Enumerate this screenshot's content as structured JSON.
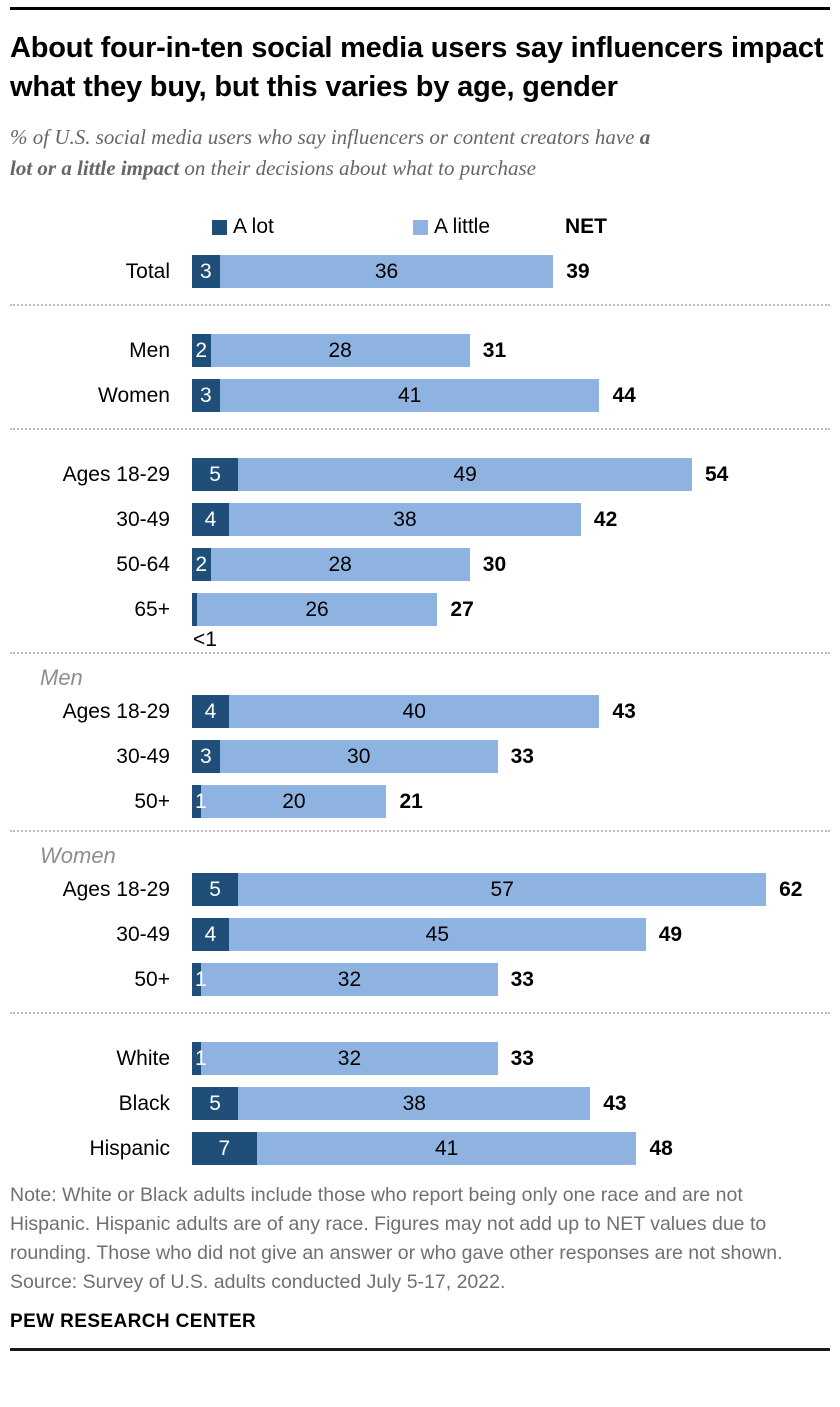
{
  "page": {
    "title": "About four-in-ten social media users say influencers impact what they buy, but this varies by age, gender",
    "subtitle": {
      "line1_regular": "% of U.S. social media users who say influencers or content creators have ",
      "line1_bold": "a",
      "line2_bold": "lot or a little impact",
      "line2_regular": " on their decisions about what to purchase"
    },
    "note": "Note: White or Black adults include those who report being only one race and are not Hispanic. Hispanic adults are of any race. Figures may not add up to NET values due to rounding. Those who did not give an answer or who gave other responses are not shown.",
    "source": "Source: Survey of U.S. adults conducted July 5-17, 2022.",
    "brand": "PEW RESEARCH CENTER"
  },
  "legend": {
    "a_lot": "A lot",
    "a_little": "A little",
    "net": "NET"
  },
  "colors": {
    "a_lot": "#1f4e79",
    "a_little": "#8fb3e0"
  },
  "chart_data": {
    "type": "bar",
    "orientation": "horizontal",
    "stacked": true,
    "unit": "percent",
    "series": [
      "A lot",
      "A little"
    ],
    "net_label": "NET",
    "xlim": [
      0,
      62
    ],
    "groups": [
      {
        "rows": [
          {
            "label": "Total",
            "a_lot": 3,
            "a_little": 36,
            "net": 39
          }
        ]
      },
      {
        "rows": [
          {
            "label": "Men",
            "a_lot": 2,
            "a_little": 28,
            "net": 31
          },
          {
            "label": "Women",
            "a_lot": 3,
            "a_little": 41,
            "net": 44
          }
        ]
      },
      {
        "rows": [
          {
            "label": "Ages 18-29",
            "a_lot": 5,
            "a_little": 49,
            "net": 54
          },
          {
            "label": "30-49",
            "a_lot": 4,
            "a_little": 38,
            "net": 42
          },
          {
            "label": "50-64",
            "a_lot": 2,
            "a_little": 28,
            "net": 30
          },
          {
            "label": "65+",
            "a_lot": 0.5,
            "a_lot_label": "<1",
            "a_lot_label_position": "below",
            "a_little": 26,
            "net": 27
          }
        ]
      },
      {
        "header": "Men",
        "rows": [
          {
            "label": "Ages 18-29",
            "a_lot": 4,
            "a_little": 40,
            "net": 43
          },
          {
            "label": "30-49",
            "a_lot": 3,
            "a_little": 30,
            "net": 33
          },
          {
            "label": "50+",
            "a_lot": 1,
            "a_little": 20,
            "net": 21
          }
        ]
      },
      {
        "header": "Women",
        "rows": [
          {
            "label": "Ages 18-29",
            "a_lot": 5,
            "a_little": 57,
            "net": 62
          },
          {
            "label": "30-49",
            "a_lot": 4,
            "a_little": 45,
            "net": 49
          },
          {
            "label": "50+",
            "a_lot": 1,
            "a_little": 32,
            "net": 33
          }
        ]
      },
      {
        "rows": [
          {
            "label": "White",
            "a_lot": 1,
            "a_little": 32,
            "net": 33
          },
          {
            "label": "Black",
            "a_lot": 5,
            "a_little": 38,
            "net": 43
          },
          {
            "label": "Hispanic",
            "a_lot": 7,
            "a_little": 41,
            "net": 48
          }
        ]
      }
    ]
  }
}
